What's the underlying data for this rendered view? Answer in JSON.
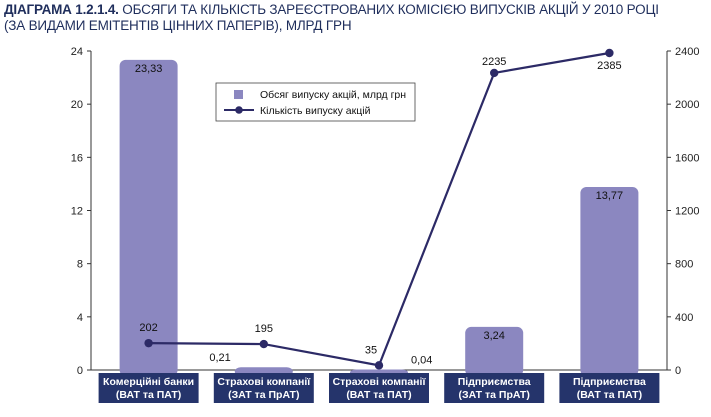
{
  "header": {
    "title_bold": "ДІАГРАМА 1.2.1.4.",
    "title_rest": " ОБСЯГИ ТА КІЛЬКІСТЬ ЗАРЕЄСТРОВАНИХ КОМІСІЄЮ ВИПУСКІВ АКЦІЙ У 2010 РОЦІ",
    "title_line2": "(ЗА ВИДАМИ ЕМІТЕНТІВ ЦІННИХ ПАПЕРІВ), МЛРД ГРН"
  },
  "chart_data": {
    "type": "bar",
    "categories": [
      [
        "Комерційні банки",
        "(ВАТ та ПАТ)"
      ],
      [
        "Страхові компанії",
        "(ЗАТ та ПрАТ)"
      ],
      [
        "Страхові компанії",
        "(ВАТ та ПАТ)"
      ],
      [
        "Підприємства",
        "(ЗАТ та ПрАТ)"
      ],
      [
        "Підприємства",
        "(ВАТ та ПАТ)"
      ]
    ],
    "series": [
      {
        "name": "Обсяг випуску акцій, млрд грн",
        "kind": "bar",
        "axis": "left",
        "values": [
          23.33,
          0.21,
          0.04,
          3.24,
          13.77
        ],
        "labels": [
          "23,33",
          "0,21",
          "0,04",
          "3,24",
          "13,77"
        ]
      },
      {
        "name": "Кількість випуску акцій",
        "kind": "line",
        "axis": "right",
        "values": [
          202,
          195,
          35,
          2235,
          2385
        ],
        "labels": [
          "202",
          "195",
          "35",
          "2235",
          "2385"
        ]
      }
    ],
    "y_left": {
      "min": 0,
      "max": 24,
      "ticks": [
        0,
        4,
        8,
        12,
        16,
        20,
        24
      ]
    },
    "y_right": {
      "min": 0,
      "max": 2400,
      "ticks": [
        0,
        400,
        800,
        1200,
        1600,
        2000,
        2400
      ]
    },
    "legend_position": "top-center",
    "grid": false,
    "colors": {
      "bar": "#8b87c0",
      "line": "#2c2a66",
      "category_bg": "#25346b",
      "title": "#1f2e5c"
    }
  }
}
